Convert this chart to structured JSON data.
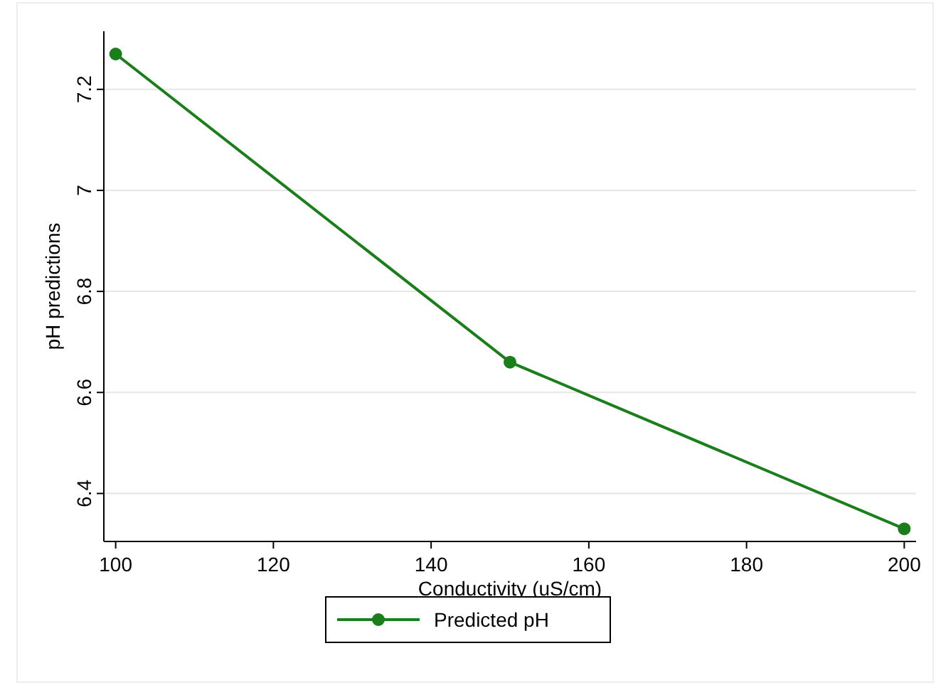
{
  "chart_data": {
    "type": "line",
    "xlabel": "Conductivity (uS/cm)",
    "ylabel": "pH predictions",
    "x": [
      100,
      150,
      200
    ],
    "series": [
      {
        "name": "Predicted pH",
        "color": "#1a7f1a",
        "values": [
          7.27,
          6.66,
          6.33
        ]
      }
    ],
    "xlim": [
      98.5,
      201.5
    ],
    "xticks": [
      100,
      120,
      140,
      160,
      180,
      200
    ],
    "ylim": [
      6.305,
      7.315
    ],
    "yticks": [
      6.4,
      6.6,
      6.8,
      7,
      7.2
    ],
    "grid": "y",
    "legend": "bottom",
    "marker": "circle",
    "line_style": "solid"
  }
}
